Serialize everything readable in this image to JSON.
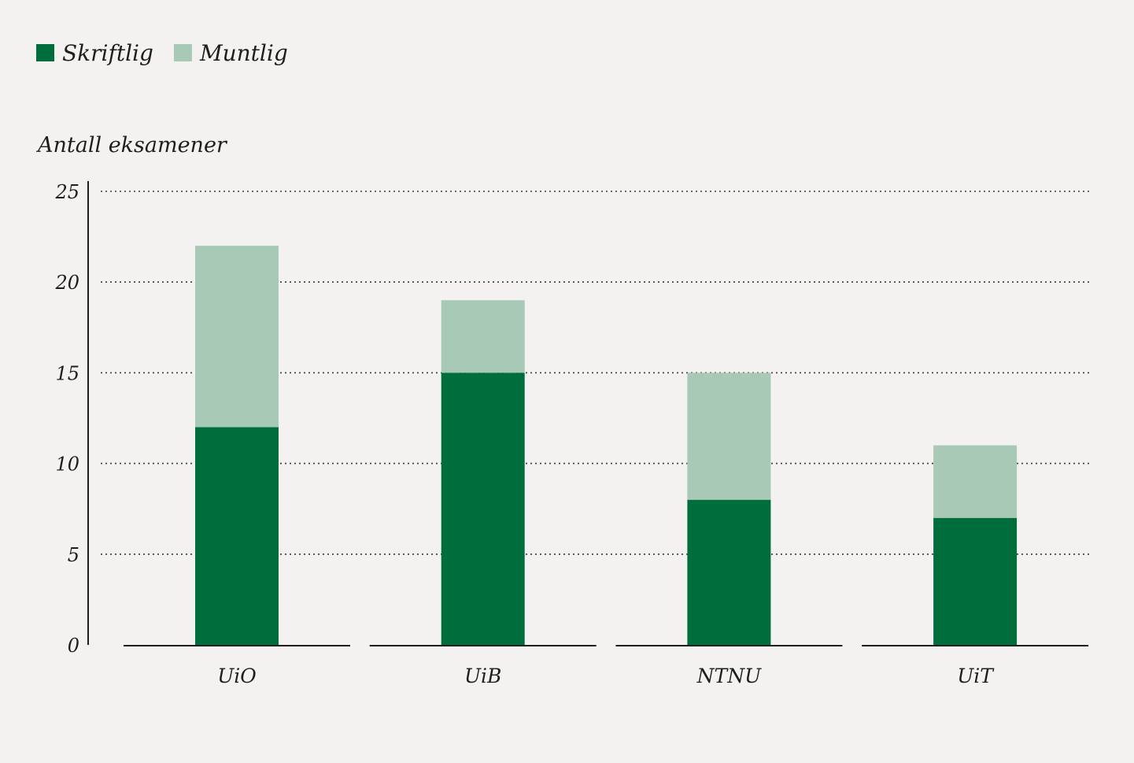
{
  "chart_data": {
    "type": "bar",
    "stacked": true,
    "title": "",
    "xlabel": "",
    "ylabel": "Antall eksamener",
    "ylim": [
      0,
      25
    ],
    "yticks": [
      0,
      5,
      10,
      15,
      20,
      25
    ],
    "grid": true,
    "legend_position": "top-left",
    "categories": [
      "UiO",
      "UiB",
      "NTNU",
      "UiT"
    ],
    "series": [
      {
        "name": "Skriftlig",
        "values": [
          12,
          15,
          8,
          7
        ],
        "color": "#006d3c"
      },
      {
        "name": "Muntlig",
        "values": [
          10,
          4,
          7,
          4
        ],
        "color": "#a8c9b5"
      }
    ]
  },
  "colors": {
    "background": "#f3f2f0",
    "axis": "#1e1e1e",
    "grid": "#3a3a3a",
    "text": "#1e1e1e"
  }
}
